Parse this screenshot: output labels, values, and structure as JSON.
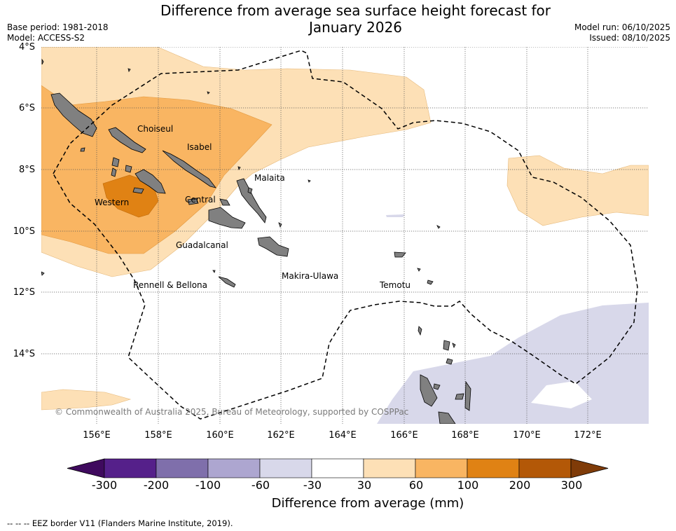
{
  "title_line1": "Difference from average sea surface height forecast for",
  "title_line2": "January 2026",
  "meta_left": {
    "base_period": "Base period: 1981-2018",
    "model": "Model: ACCESS-S2"
  },
  "meta_right": {
    "model_run": "Model run: 06/10/2025",
    "issued": "Issued: 08/10/2025"
  },
  "lat_labels": [
    "4°S",
    "6°S",
    "8°S",
    "10°S",
    "12°S",
    "14°S"
  ],
  "lon_labels": [
    "156°E",
    "158°E",
    "160°E",
    "162°E",
    "164°E",
    "166°E",
    "168°E",
    "170°E",
    "172°E"
  ],
  "regions": {
    "choiseul": "Choiseul",
    "isabel": "Isabel",
    "malaita": "Malaita",
    "western": "Western",
    "central": "Central",
    "guadalcanal": "Guadalcanal",
    "makira": "Makira-Ulawa",
    "rennell": "Rennell & Bellona",
    "temotu": "Temotu"
  },
  "copyright": "© Commonwealth of Australia 2025, Bureau of Meteorology, supported by COSPPac",
  "colorbar": {
    "labels": [
      "-300",
      "-200",
      "-100",
      "-60",
      "-30",
      "30",
      "60",
      "100",
      "200",
      "300"
    ],
    "colors": [
      "#3f0a5e",
      "#55208a",
      "#7f6fab",
      "#ada6d0",
      "#d8d8ea",
      "#ffffff",
      "#fde0b6",
      "#f9b562",
      "#e08214",
      "#b35807",
      "#7f3b08"
    ],
    "title": "Difference from average (mm)"
  },
  "footer": "--  --  -- EEZ border V11 (Flanders Marine Institute, 2019).",
  "chart_data": {
    "type": "map",
    "variable": "Difference from average sea surface height (mm)",
    "lon_range": [
      154.5,
      174.3
    ],
    "lat_range": [
      -16.2,
      -3.9
    ],
    "categories_shown": [
      "-60 to -30",
      "30 to 60",
      "60 to 100",
      "100 to 200"
    ]
  }
}
